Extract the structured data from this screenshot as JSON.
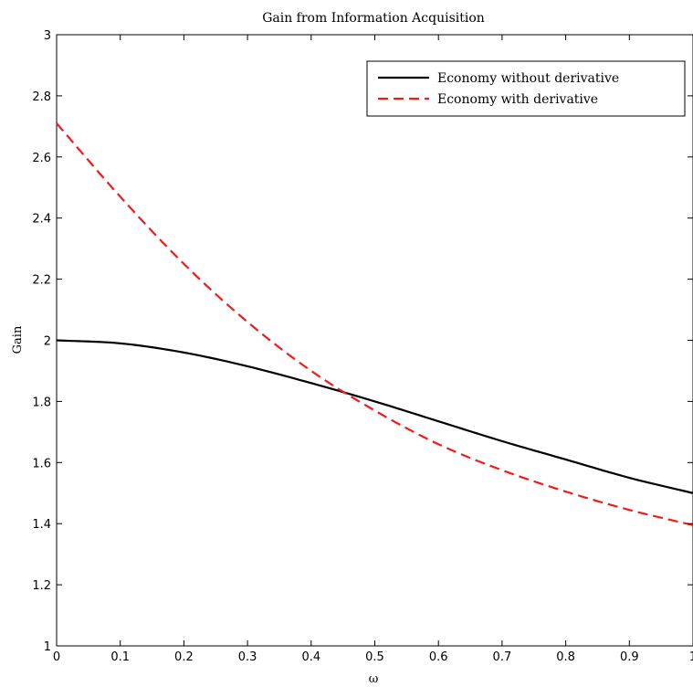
{
  "chart_data": {
    "type": "line",
    "title": "Gain from Information Acquisition",
    "xlabel": "ω",
    "ylabel": "Gain",
    "xlim": [
      0,
      1
    ],
    "ylim": [
      1,
      3
    ],
    "xticks": [
      0,
      0.1,
      0.2,
      0.3,
      0.4,
      0.5,
      0.6,
      0.7,
      0.8,
      0.9,
      1
    ],
    "xtick_labels": [
      "0",
      "0.1",
      "0.2",
      "0.3",
      "0.4",
      "0.5",
      "0.6",
      "0.7",
      "0.8",
      "0.9",
      "1"
    ],
    "yticks": [
      1,
      1.2,
      1.4,
      1.6,
      1.8,
      2,
      2.2,
      2.4,
      2.6,
      2.8,
      3
    ],
    "ytick_labels": [
      "1",
      "1.2",
      "1.4",
      "1.6",
      "1.8",
      "2",
      "2.2",
      "2.4",
      "2.6",
      "2.8",
      "3"
    ],
    "grid": false,
    "legend_position": "top-right",
    "x": [
      0,
      0.1,
      0.2,
      0.3,
      0.4,
      0.5,
      0.6,
      0.7,
      0.8,
      0.9,
      1
    ],
    "series": [
      {
        "name": "Economy without derivative",
        "color": "#000000",
        "style": "solid",
        "values": [
          2.0,
          1.99,
          1.96,
          1.915,
          1.86,
          1.8,
          1.735,
          1.67,
          1.61,
          1.55,
          1.5
        ]
      },
      {
        "name": "Economy with derivative",
        "color": "#ee1c1c",
        "style": "dashed",
        "values": [
          2.71,
          2.47,
          2.25,
          2.06,
          1.9,
          1.77,
          1.66,
          1.575,
          1.505,
          1.445,
          1.395
        ]
      }
    ]
  }
}
